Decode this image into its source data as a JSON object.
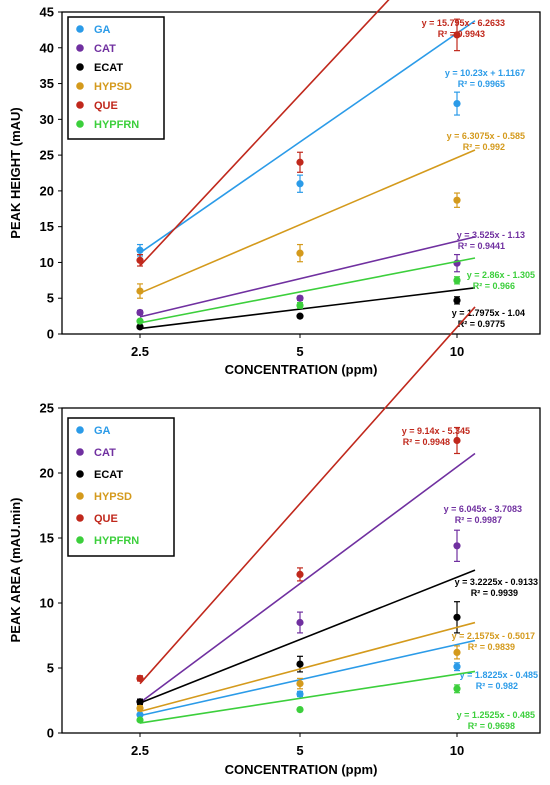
{
  "chart_data": [
    {
      "type": "scatter",
      "xlabel": "CONCENTRATION (ppm)",
      "ylabel": "PEAK HEIGHT (mAU)",
      "categories": [
        "2.5",
        "5",
        "10"
      ],
      "ylim": [
        0,
        45
      ],
      "yticks": [
        0,
        5,
        10,
        15,
        20,
        25,
        30,
        35,
        40,
        45
      ],
      "grid": false,
      "legend_position": "top-left",
      "series": [
        {
          "name": "GA",
          "color": "#2b9be8",
          "values": [
            11.7,
            21.0,
            32.2
          ],
          "errors": [
            0.8,
            1.2,
            1.6
          ],
          "trendline": {
            "slope": 10.23,
            "intercept": 1.1167
          },
          "equation": "y = 10.23x + 1.1167",
          "r2": "R² = 0.9965"
        },
        {
          "name": "CAT",
          "color": "#7030a0",
          "values": [
            3.0,
            5.0,
            9.9
          ],
          "errors": [
            0.3,
            0.3,
            1.2
          ],
          "trendline": {
            "slope": 3.525,
            "intercept": -1.13
          },
          "equation": "y = 3.525x - 1.13",
          "r2": "R² = 0.9441"
        },
        {
          "name": "ECAT",
          "color": "#000000",
          "values": [
            1.0,
            2.5,
            4.7
          ],
          "errors": [
            0.1,
            0.2,
            0.5
          ],
          "trendline": {
            "slope": 1.7975,
            "intercept": -1.04
          },
          "equation": "y = 1.7975x - 1.04",
          "r2": "R² = 0.9775"
        },
        {
          "name": "HYPSD",
          "color": "#d49a1c",
          "values": [
            6.0,
            11.3,
            18.7
          ],
          "errors": [
            1.0,
            1.2,
            1.0
          ],
          "trendline": {
            "slope": 6.3075,
            "intercept": -0.585
          },
          "equation": "y = 6.3075x - 0.585",
          "r2": "R² = 0.992"
        },
        {
          "name": "QUE",
          "color": "#c0281c",
          "values": [
            10.3,
            24.0,
            41.8
          ],
          "errors": [
            0.8,
            1.4,
            2.2
          ],
          "trendline": {
            "slope": 15.795,
            "intercept": -6.2633
          },
          "equation": "y = 15.795x - 6.2633",
          "r2": "R² = 0.9943"
        },
        {
          "name": "HYPFRN",
          "color": "#3ccf3c",
          "values": [
            1.8,
            4.0,
            7.5
          ],
          "errors": [
            0.2,
            0.4,
            0.5
          ],
          "trendline": {
            "slope": 2.86,
            "intercept": -1.305
          },
          "equation": "y = 2.86x - 1.305",
          "r2": "R² = 0.966"
        }
      ]
    },
    {
      "type": "scatter",
      "xlabel": "CONCENTRATION (ppm)",
      "ylabel": "PEAK AREA (mAU.min)",
      "categories": [
        "2.5",
        "5",
        "10"
      ],
      "ylim": [
        0,
        25
      ],
      "yticks": [
        0,
        5,
        10,
        15,
        20,
        25
      ],
      "grid": false,
      "legend_position": "top-left",
      "series": [
        {
          "name": "GA",
          "color": "#2b9be8",
          "values": [
            1.4,
            3.0,
            5.1
          ],
          "errors": [
            0.1,
            0.2,
            0.3
          ],
          "trendline": {
            "slope": 1.8225,
            "intercept": -0.485
          },
          "equation": "y = 1.8225x - 0.485",
          "r2": "R² = 0.982"
        },
        {
          "name": "CAT",
          "color": "#7030a0",
          "values": [
            2.4,
            8.5,
            14.4
          ],
          "errors": [
            0.2,
            0.8,
            1.2
          ],
          "trendline": {
            "slope": 6.045,
            "intercept": -3.7083
          },
          "equation": "y = 6.045x - 3.7083",
          "r2": "R² = 0.9987"
        },
        {
          "name": "ECAT",
          "color": "#000000",
          "values": [
            2.4,
            5.3,
            8.9
          ],
          "errors": [
            0.2,
            0.6,
            1.2
          ],
          "trendline": {
            "slope": 3.2225,
            "intercept": -0.9133
          },
          "equation": "y = 3.2225x - 0.9133",
          "r2": "R² = 0.9939"
        },
        {
          "name": "HYPSD",
          "color": "#d49a1c",
          "values": [
            1.9,
            3.8,
            6.2
          ],
          "errors": [
            0.2,
            0.4,
            0.5
          ],
          "trendline": {
            "slope": 2.1575,
            "intercept": -0.5017
          },
          "equation": "y = 2.1575x - 0.5017",
          "r2": "R² = 0.9839"
        },
        {
          "name": "QUE",
          "color": "#c0281c",
          "values": [
            4.2,
            12.2,
            22.5
          ],
          "errors": [
            0.2,
            0.5,
            1.0
          ],
          "trendline": {
            "slope": 9.14,
            "intercept": -5.345
          },
          "equation": "y = 9.14x - 5.345",
          "r2": "R² = 0.9948"
        },
        {
          "name": "HYPFRN",
          "color": "#3ccf3c",
          "values": [
            1.0,
            1.8,
            3.4
          ],
          "errors": [
            0.1,
            0.1,
            0.3
          ],
          "trendline": {
            "slope": 1.2525,
            "intercept": -0.485
          },
          "equation": "y = 1.2525x - 0.485",
          "r2": "R² = 0.9698"
        }
      ]
    }
  ]
}
